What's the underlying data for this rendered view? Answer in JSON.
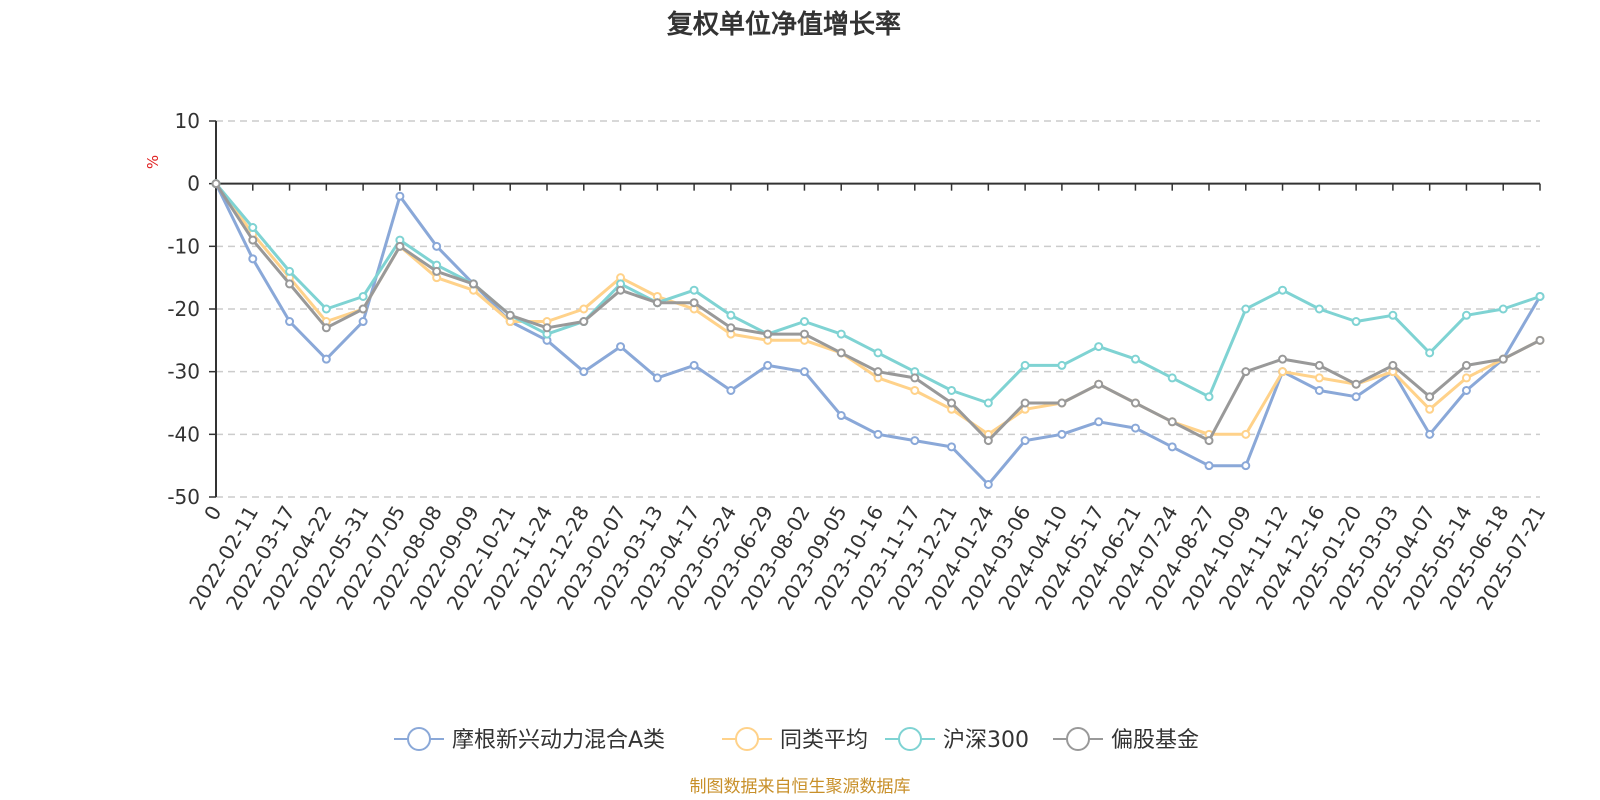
{
  "chart_data": {
    "type": "line",
    "title": "复权单位净值增长率",
    "ylabel": "%",
    "ylim": [
      -50,
      10
    ],
    "yticks": [
      10,
      0,
      -10,
      -20,
      -30,
      -40,
      -50
    ],
    "x_tick_labels": [
      "0",
      "2022-02-11",
      "2022-03-17",
      "2022-04-22",
      "2022-05-31",
      "2022-07-05",
      "2022-08-08",
      "2022-09-09",
      "2022-10-21",
      "2022-11-24",
      "2022-12-28",
      "2023-02-07",
      "2023-03-13",
      "2023-04-17",
      "2023-05-24",
      "2023-06-29",
      "2023-08-02",
      "2023-09-05",
      "2023-10-16",
      "2023-11-17",
      "2023-12-21",
      "2024-01-24",
      "2024-03-06",
      "2024-04-10",
      "2024-05-17",
      "2024-06-21",
      "2024-07-24",
      "2024-08-27",
      "2024-10-09",
      "2024-11-12",
      "2024-12-16",
      "2025-01-20",
      "2025-03-03",
      "2025-04-07",
      "2025-05-14",
      "2025-06-18",
      "2025-07-21"
    ],
    "grid": true,
    "legend_position": "bottom",
    "series": [
      {
        "name": "摩根新兴动力混合A类",
        "color": "#8aa8d8",
        "values": [
          0,
          -12,
          -22,
          -28,
          -22,
          -2,
          -10,
          -16,
          -22,
          -25,
          -30,
          -26,
          -31,
          -29,
          -33,
          -29,
          -30,
          -37,
          -40,
          -41,
          -42,
          -48,
          -41,
          -40,
          -38,
          -39,
          -42,
          -45,
          -45,
          -30,
          -33,
          -34,
          -30,
          -40,
          -33,
          -28,
          -18
        ]
      },
      {
        "name": "同类平均",
        "color": "#ffd28a",
        "values": [
          0,
          -8,
          -15,
          -22,
          -20,
          -10,
          -15,
          -17,
          -22,
          -22,
          -20,
          -15,
          -18,
          -20,
          -24,
          -25,
          -25,
          -27,
          -31,
          -33,
          -36,
          -40,
          -36,
          -35,
          -32,
          -35,
          -38,
          -40,
          -40,
          -30,
          -31,
          -32,
          -30,
          -36,
          -31,
          -28,
          -25
        ]
      },
      {
        "name": "沪深300",
        "color": "#7fd3d3",
        "values": [
          0,
          -7,
          -14,
          -20,
          -18,
          -9,
          -13,
          -16,
          -21,
          -24,
          -22,
          -16,
          -19,
          -17,
          -21,
          -24,
          -22,
          -24,
          -27,
          -30,
          -33,
          -35,
          -29,
          -29,
          -26,
          -28,
          -31,
          -34,
          -20,
          -17,
          -20,
          -22,
          -21,
          -27,
          -21,
          -20,
          -18
        ]
      },
      {
        "name": "偏股基金",
        "color": "#999999",
        "values": [
          0,
          -9,
          -16,
          -23,
          -20,
          -10,
          -14,
          -16,
          -21,
          -23,
          -22,
          -17,
          -19,
          -19,
          -23,
          -24,
          -24,
          -27,
          -30,
          -31,
          -35,
          -41,
          -35,
          -35,
          -32,
          -35,
          -38,
          -41,
          -30,
          -28,
          -29,
          -32,
          -29,
          -34,
          -29,
          -28,
          -25
        ]
      }
    ],
    "source": "制图数据来自恒生聚源数据库"
  }
}
